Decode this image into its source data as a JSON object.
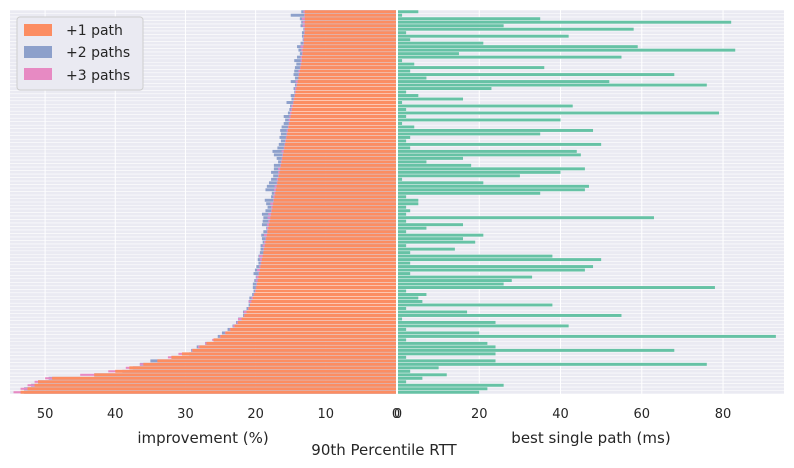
{
  "chart_data": {
    "type": "bar",
    "orientation": "horizontal",
    "suptitle": "90th Percentile RTT",
    "grid": true,
    "legend_position": "top-left",
    "left_panel": {
      "xlabel": "improvement (%)",
      "xlim": [
        55,
        0
      ],
      "xticks": [
        50,
        40,
        30,
        20,
        10,
        0
      ],
      "series": [
        {
          "name": "+1 path",
          "color": "#fc8d62"
        },
        {
          "name": "+2 paths",
          "color": "#8da0cb"
        },
        {
          "name": "+3 paths",
          "color": "#e78ac3"
        }
      ],
      "plus1": [
        13.0,
        13.0,
        13.0,
        13.0,
        13.0,
        13.0,
        13.0,
        13.1,
        13.1,
        13.1,
        13.2,
        13.3,
        13.3,
        13.4,
        13.4,
        13.5,
        13.6,
        13.7,
        13.8,
        13.9,
        14.0,
        14.1,
        14.2,
        14.3,
        14.4,
        14.5,
        14.6,
        14.7,
        14.8,
        14.9,
        15.0,
        15.1,
        15.2,
        15.3,
        15.4,
        15.5,
        15.6,
        15.7,
        15.8,
        15.9,
        16.0,
        16.1,
        16.2,
        16.3,
        16.4,
        16.5,
        16.6,
        16.7,
        16.8,
        16.9,
        17.0,
        17.1,
        17.2,
        17.3,
        17.4,
        17.5,
        17.6,
        17.7,
        17.8,
        17.9,
        18.0,
        18.1,
        18.2,
        18.3,
        18.4,
        18.5,
        18.6,
        18.7,
        18.8,
        18.9,
        19.0,
        19.1,
        19.2,
        19.3,
        19.4,
        19.5,
        19.6,
        19.7,
        19.8,
        19.9,
        20.0,
        20.2,
        20.4,
        20.6,
        20.8,
        21.0,
        21.3,
        21.6,
        22.0,
        22.5,
        23.0,
        23.6,
        24.3,
        25.0,
        26.0,
        27.0,
        28.0,
        29.0,
        30.5,
        32.0,
        34.0,
        36.0,
        38.0,
        40.0,
        43.0,
        49.0,
        51.0,
        51.5,
        52.5,
        53.5
      ],
      "plus2": [
        13.5,
        15.0,
        13.7,
        13.5,
        13.6,
        13.2,
        13.4,
        13.4,
        13.3,
        13.6,
        14.1,
        13.9,
        13.7,
        14.1,
        14.5,
        14.2,
        14.4,
        14.5,
        14.6,
        14.4,
        15.0,
        14.4,
        14.6,
        14.5,
        15.0,
        14.9,
        15.6,
        15.1,
        15.2,
        15.4,
        16.0,
        15.8,
        16.0,
        16.3,
        16.5,
        16.4,
        16.6,
        16.4,
        16.7,
        16.9,
        17.6,
        17.4,
        17.0,
        16.8,
        17.4,
        17.4,
        17.8,
        17.5,
        17.8,
        18.1,
        18.4,
        18.6,
        17.7,
        17.8,
        18.7,
        18.5,
        18.3,
        18.6,
        19.1,
        18.9,
        19.0,
        19.1,
        18.5,
        18.9,
        19.2,
        19.1,
        19.0,
        19.3,
        19.3,
        19.4,
        19.6,
        19.7,
        19.6,
        19.9,
        20.1,
        20.3,
        20.0,
        20.2,
        20.4,
        20.4,
        20.3,
        20.5,
        20.9,
        21.0,
        21.0,
        21.3,
        21.8,
        21.8,
        22.5,
        22.8,
        23.3,
        24.0,
        24.8,
        25.4,
        26.0,
        27.2,
        28.4,
        29.2,
        29.5,
        32.0,
        35.0,
        36.5,
        37.5,
        39.0,
        43.0,
        49.5,
        51.0,
        52.0,
        53.0,
        53.0
      ],
      "plus3": [
        13.2,
        13.1,
        13.4,
        13.3,
        13.3,
        13.1,
        13.1,
        13.2,
        13.2,
        13.2,
        13.6,
        13.5,
        13.4,
        13.6,
        13.6,
        13.6,
        13.7,
        13.9,
        13.9,
        13.9,
        14.3,
        14.2,
        14.4,
        14.4,
        14.5,
        14.6,
        14.7,
        14.9,
        15.0,
        15.1,
        15.2,
        15.3,
        15.3,
        15.4,
        15.6,
        15.6,
        15.7,
        15.8,
        15.9,
        16.0,
        16.3,
        16.2,
        16.3,
        16.4,
        16.5,
        16.8,
        16.8,
        16.8,
        17.0,
        17.0,
        17.3,
        17.4,
        17.4,
        17.5,
        17.5,
        17.9,
        17.8,
        17.8,
        18.2,
        18.3,
        18.2,
        18.4,
        18.4,
        18.4,
        18.8,
        18.6,
        18.8,
        19.0,
        18.9,
        18.9,
        19.5,
        19.4,
        19.3,
        19.5,
        19.8,
        19.6,
        19.9,
        20.0,
        19.9,
        20.0,
        20.1,
        20.3,
        20.6,
        21.0,
        20.8,
        21.1,
        21.7,
        21.7,
        22.5,
        22.7,
        23.2,
        23.7,
        24.4,
        25.1,
        26.2,
        27.2,
        28.2,
        29.1,
        31.0,
        32.5,
        34.0,
        36.5,
        38.5,
        41.0,
        45.0,
        50.0,
        51.5,
        52.5,
        53.5,
        54.5
      ]
    },
    "right_panel": {
      "xlabel": "best single path (ms)",
      "xlim": [
        0,
        95
      ],
      "xticks": [
        0,
        20,
        40,
        60,
        80
      ],
      "color": "#66c2a5",
      "values": [
        5.0,
        1.0,
        35.0,
        82.0,
        26.0,
        58.0,
        2.0,
        42.0,
        3.0,
        21.0,
        59.0,
        83.0,
        15.0,
        55.0,
        1.0,
        4.0,
        36.0,
        3.0,
        68.0,
        7.0,
        52.0,
        76.0,
        23.0,
        2.0,
        5.0,
        16.0,
        1.0,
        43.0,
        2.0,
        79.0,
        2.0,
        40.0,
        1.0,
        4.0,
        48.0,
        35.0,
        3.0,
        2.0,
        50.0,
        3.0,
        44.0,
        45.0,
        16.0,
        7.0,
        18.0,
        46.0,
        40.0,
        30.0,
        1.0,
        21.0,
        47.0,
        46.0,
        35.0,
        2.0,
        5.0,
        5.0,
        2.0,
        3.0,
        2.0,
        63.0,
        2.0,
        16.0,
        7.0,
        2.0,
        21.0,
        16.0,
        19.0,
        2.0,
        14.0,
        3.0,
        38.0,
        50.0,
        3.0,
        48.0,
        46.0,
        3.0,
        33.0,
        28.0,
        26.0,
        78.0,
        2.0,
        7.0,
        5.0,
        6.0,
        38.0,
        2.0,
        17.0,
        55.0,
        1.0,
        24.0,
        42.0,
        2.0,
        20.0,
        93.0,
        2.0,
        22.0,
        24.0,
        68.0,
        24.0,
        2.0,
        24.0,
        76.0,
        10.0,
        3.0,
        12.0,
        6.0,
        2.0,
        26.0,
        22.0,
        20.0
      ]
    }
  }
}
